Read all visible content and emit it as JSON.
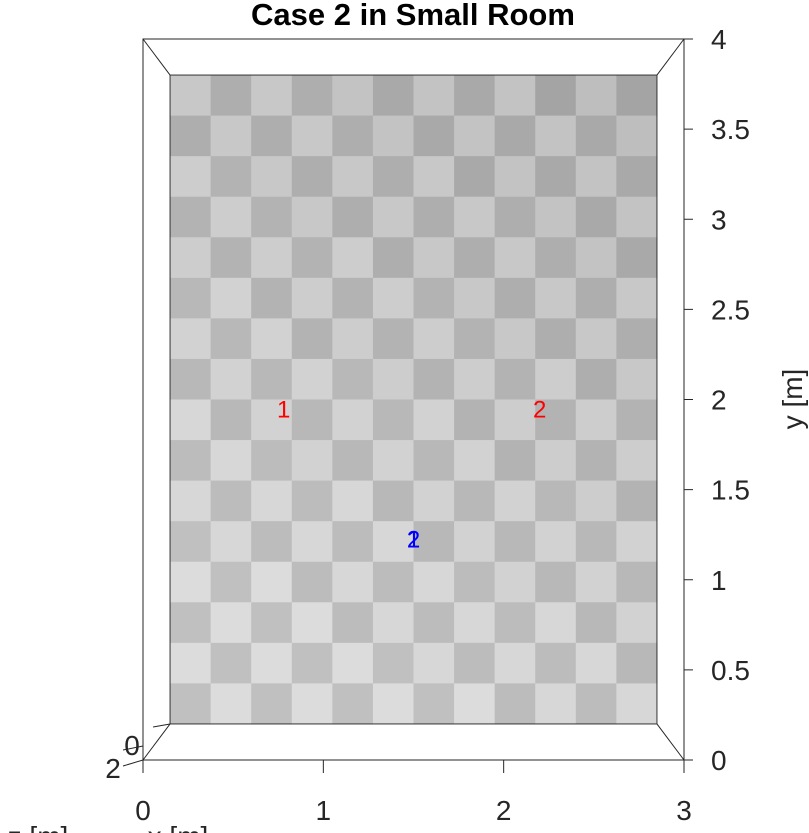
{
  "chart_data": {
    "type": "scatter",
    "title": "Case 2 in Small Room",
    "view": "3d-top",
    "xlabel": "x [m]",
    "ylabel": "y [m]",
    "zlabel": "z [m]",
    "xlim": [
      0,
      3
    ],
    "ylim": [
      0,
      4
    ],
    "zlim": [
      0,
      2
    ],
    "xticks": [
      "0",
      "1",
      "2",
      "3"
    ],
    "yticks": [
      "0",
      "0.5",
      "1",
      "1.5",
      "2",
      "2.5",
      "3",
      "3.5",
      "4"
    ],
    "zticks": [
      "0",
      "2"
    ],
    "room": {
      "floor": "checkerboard",
      "floor_x": [
        0.15,
        2.85
      ],
      "floor_y": [
        0.2,
        3.8
      ],
      "checker_cols": 12,
      "checker_rows": 16
    },
    "series": [
      {
        "color": "#ff0000",
        "points": [
          {
            "label": "1",
            "x": 0.78,
            "y": 1.95
          },
          {
            "label": "2",
            "x": 2.2,
            "y": 1.95
          }
        ]
      },
      {
        "color": "#0000ff",
        "points": [
          {
            "label": "1",
            "x": 1.5,
            "y": 1.23
          },
          {
            "label": "2",
            "x": 1.5,
            "y": 1.23
          }
        ]
      }
    ]
  }
}
